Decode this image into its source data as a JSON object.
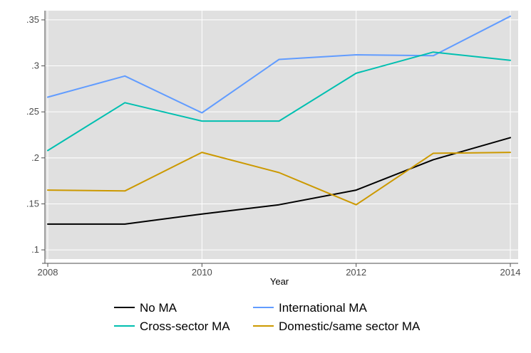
{
  "chart_data": {
    "type": "line",
    "title": "",
    "xlabel": "Year",
    "ylabel": "",
    "xlim": [
      2008,
      2014
    ],
    "ylim": [
      0.09,
      0.36
    ],
    "x_ticks": [
      {
        "value": 2008,
        "label": "2008"
      },
      {
        "value": 2010,
        "label": "2010"
      },
      {
        "value": 2012,
        "label": "2012"
      },
      {
        "value": 2014,
        "label": "2014"
      }
    ],
    "y_ticks": [
      {
        "value": 0.1,
        "label": ".1"
      },
      {
        "value": 0.15,
        "label": ".15"
      },
      {
        "value": 0.2,
        "label": ".2"
      },
      {
        "value": 0.25,
        "label": ".25"
      },
      {
        "value": 0.3,
        "label": ".3"
      },
      {
        "value": 0.35,
        "label": ".35"
      }
    ],
    "grid": true,
    "legend_position": "bottom",
    "x": [
      2008,
      2009,
      2010,
      2011,
      2012,
      2013,
      2014
    ],
    "series": [
      {
        "name": "No MA",
        "color": "#000000",
        "values": [
          0.128,
          0.128,
          0.139,
          0.149,
          0.165,
          0.198,
          0.222
        ]
      },
      {
        "name": "International MA",
        "color": "#619cff",
        "values": [
          0.266,
          0.289,
          0.249,
          0.307,
          0.312,
          0.311,
          0.354
        ]
      },
      {
        "name": "Cross-sector MA",
        "color": "#00bfb0",
        "values": [
          0.208,
          0.26,
          0.24,
          0.24,
          0.292,
          0.315,
          0.306
        ]
      },
      {
        "name": "Domestic/same sector MA",
        "color": "#cc9900",
        "values": [
          0.165,
          0.164,
          0.206,
          0.184,
          0.149,
          0.205,
          0.206
        ]
      }
    ]
  }
}
